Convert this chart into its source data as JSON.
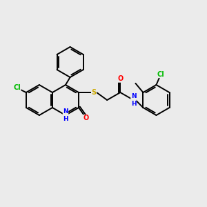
{
  "bg_color": "#ebebeb",
  "bond_color": "#000000",
  "atom_colors": {
    "N": "#0000ff",
    "O": "#ff0000",
    "S": "#ccaa00",
    "Cl": "#00bb00",
    "C": "#000000",
    "H": "#000000"
  },
  "lw": 1.4,
  "fontsize": 7.0
}
